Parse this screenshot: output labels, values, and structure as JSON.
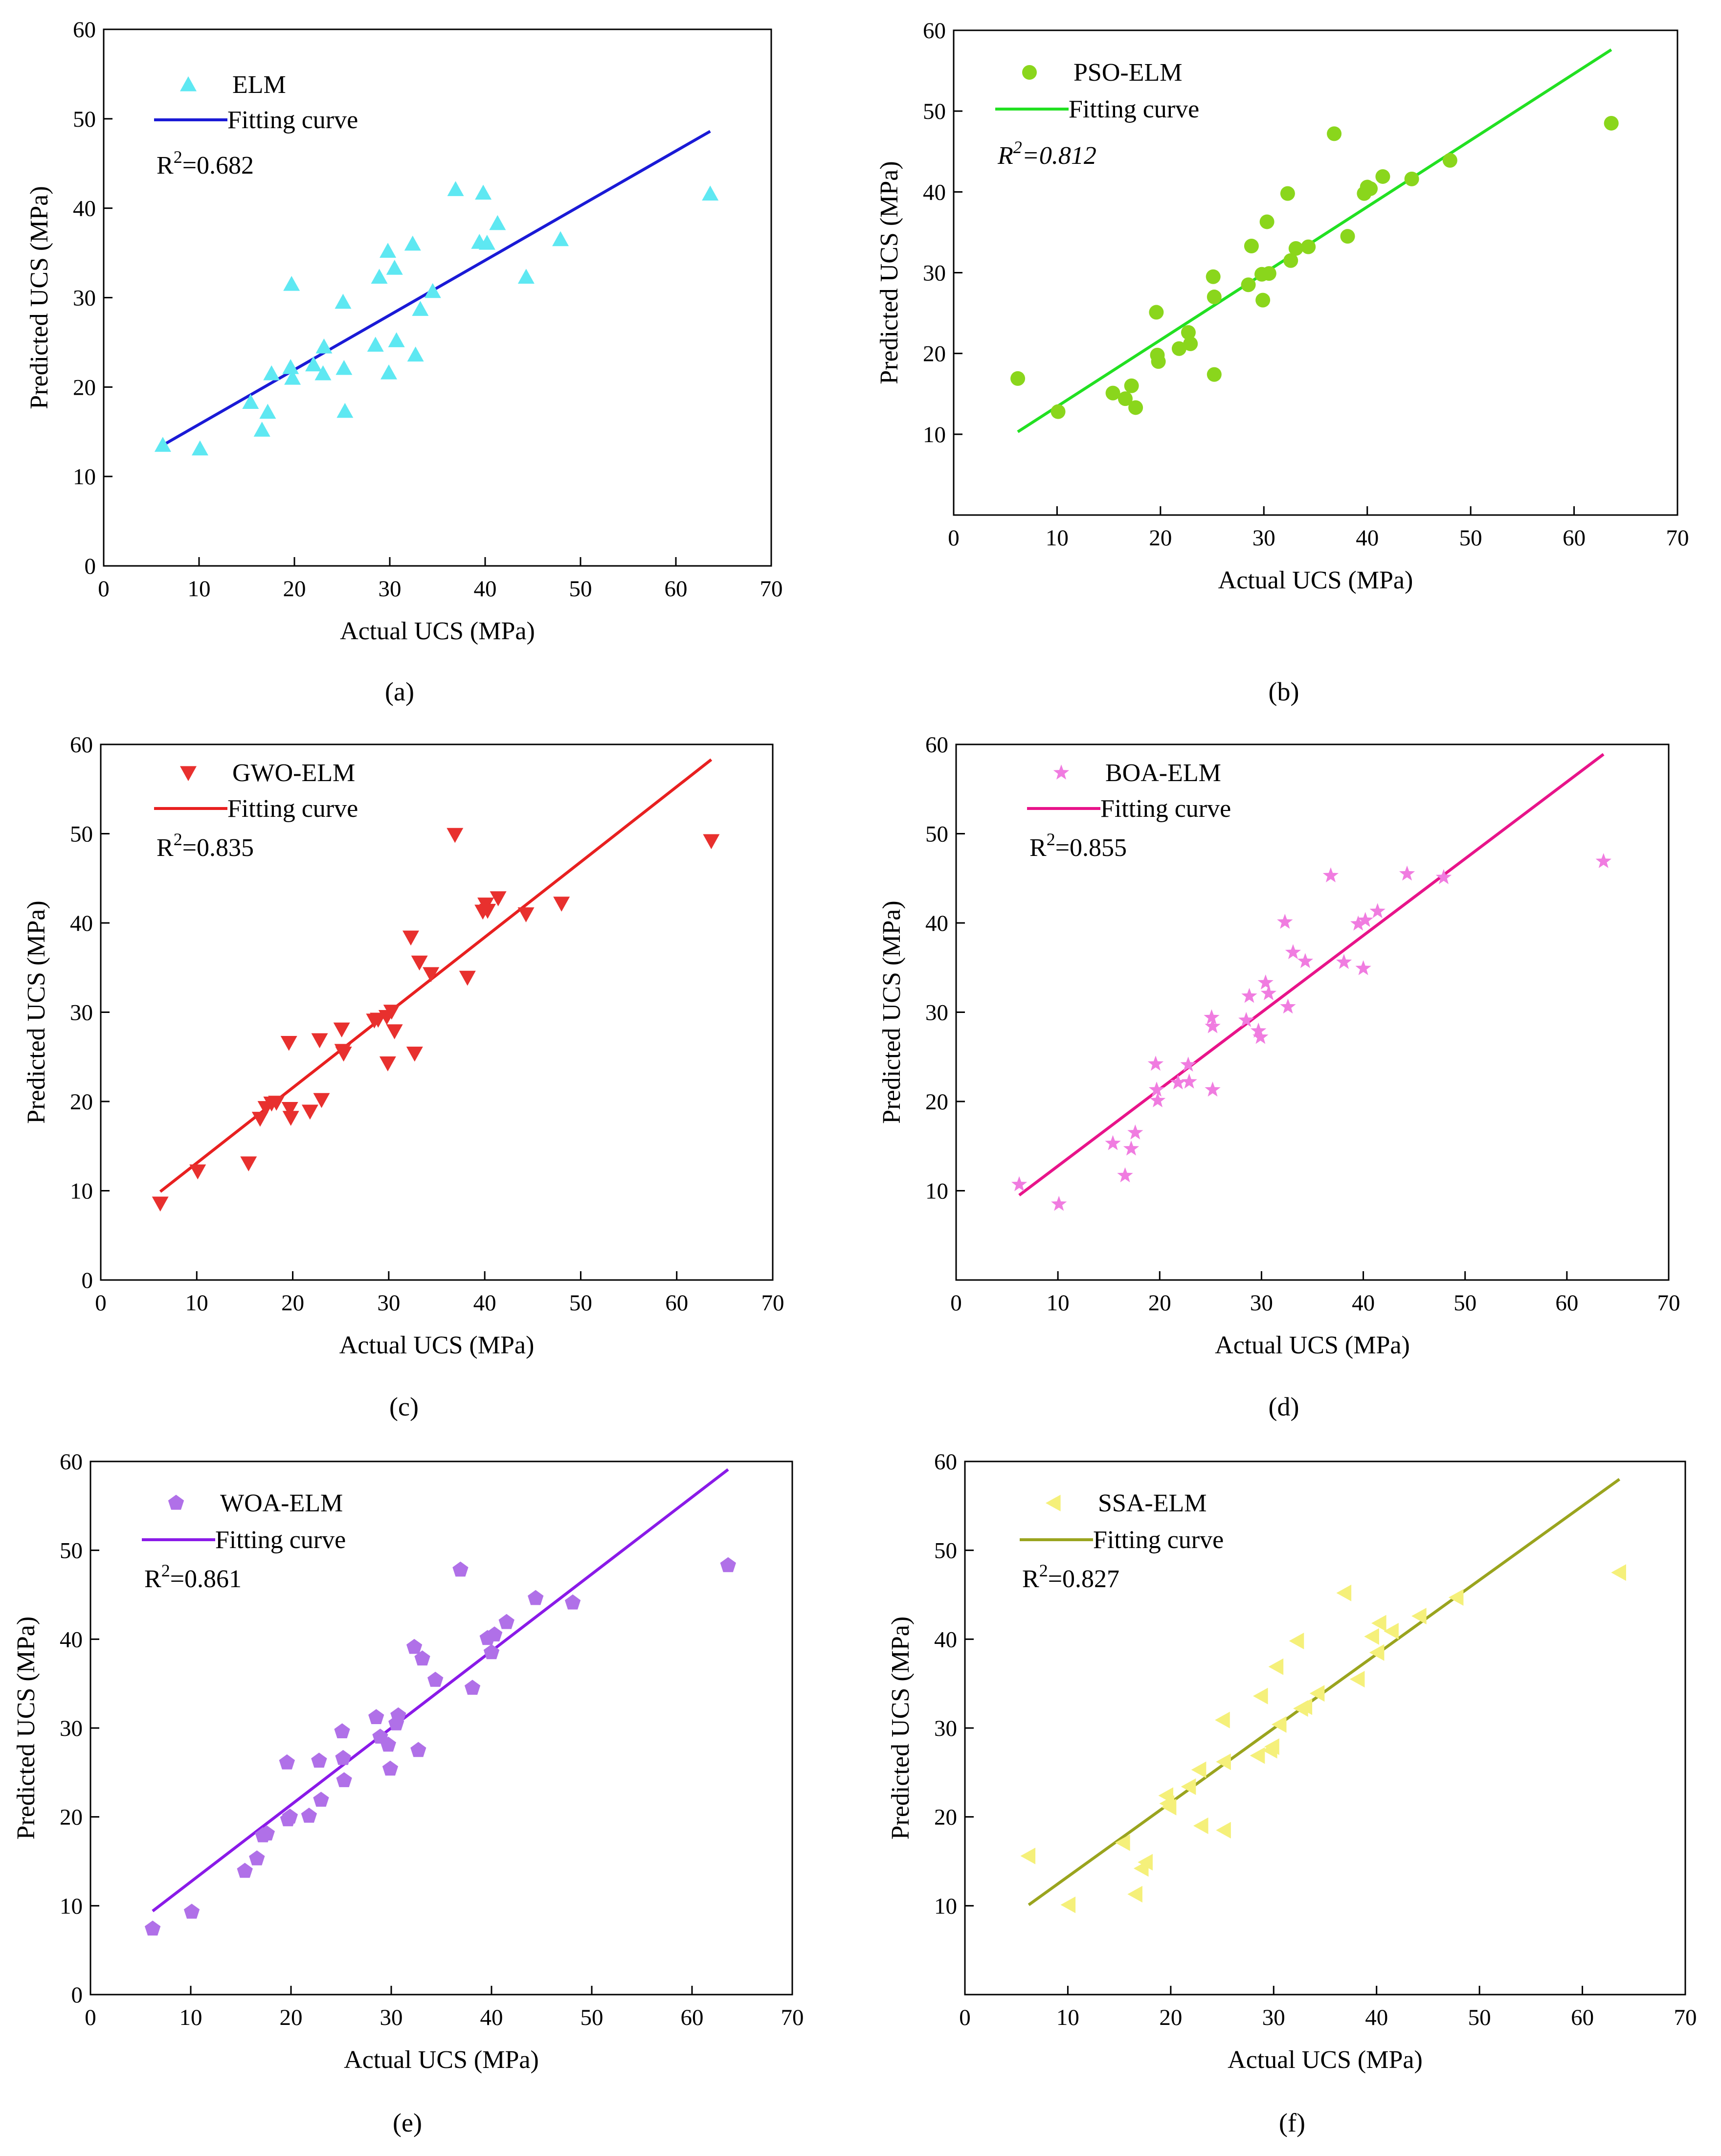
{
  "chart_data": [
    {
      "type": "scatter",
      "panel_label": "(a)",
      "model": "ELM",
      "fit_label": "Fitting curve",
      "r2_prefix": "R",
      "r2_sup": "2",
      "r2_value": "=0.682",
      "xlabel": "Actual UCS (MPa)",
      "ylabel": "Predicted UCS (MPa)",
      "xlim": [
        0,
        70
      ],
      "ylim": [
        0,
        60
      ],
      "xticks": [
        "0",
        "10",
        "20",
        "30",
        "40",
        "50",
        "60",
        "70"
      ],
      "yticks": [
        "0",
        "10",
        "20",
        "30",
        "40",
        "50",
        "60"
      ],
      "marker": "triangle-up",
      "marker_color": "#5ee8f2",
      "line_color": "#1a1ad6",
      "fit_line": [
        [
          6.2,
          13.5
        ],
        [
          63.6,
          48.6
        ]
      ],
      "points": [
        [
          6.2,
          13.5
        ],
        [
          10.1,
          13.1
        ],
        [
          15.4,
          18.3
        ],
        [
          16.6,
          15.2
        ],
        [
          17.2,
          17.2
        ],
        [
          17.6,
          21.5
        ],
        [
          19.6,
          22.2
        ],
        [
          19.7,
          31.5
        ],
        [
          19.8,
          21.0
        ],
        [
          22.0,
          22.5
        ],
        [
          23.0,
          21.5
        ],
        [
          23.1,
          24.5
        ],
        [
          25.1,
          29.5
        ],
        [
          25.2,
          22.1
        ],
        [
          25.3,
          17.3
        ],
        [
          28.5,
          24.7
        ],
        [
          28.9,
          32.3
        ],
        [
          29.8,
          35.2
        ],
        [
          29.9,
          21.6
        ],
        [
          30.5,
          33.3
        ],
        [
          30.7,
          25.2
        ],
        [
          32.4,
          36.0
        ],
        [
          32.7,
          23.6
        ],
        [
          33.2,
          28.7
        ],
        [
          34.5,
          30.7
        ],
        [
          36.9,
          42.1
        ],
        [
          39.4,
          36.2
        ],
        [
          39.8,
          41.7
        ],
        [
          40.2,
          36.1
        ],
        [
          41.3,
          38.3
        ],
        [
          44.3,
          32.3
        ],
        [
          47.9,
          36.5
        ],
        [
          63.6,
          41.6
        ]
      ]
    },
    {
      "type": "scatter",
      "panel_label": "(b)",
      "model": "PSO-ELM",
      "fit_label": "Fitting curve",
      "r2_prefix": "R",
      "r2_sup": "2",
      "r2_value": "=0.812",
      "xlabel": "Actual UCS (MPa)",
      "ylabel": "Predicted UCS (MPa)",
      "xlim": [
        0,
        70
      ],
      "ylim": [
        0,
        60
      ],
      "xticks": [
        "0",
        "10",
        "20",
        "30",
        "40",
        "50",
        "60",
        "70"
      ],
      "yticks": [
        "10",
        "20",
        "30",
        "40",
        "50",
        "60"
      ],
      "marker": "circle",
      "marker_color": "#8ad61c",
      "line_color": "#22e022",
      "fit_line": [
        [
          6.2,
          10.3
        ],
        [
          63.6,
          57.6
        ]
      ],
      "points": [
        [
          6.2,
          16.9
        ],
        [
          10.1,
          12.8
        ],
        [
          15.4,
          15.1
        ],
        [
          16.6,
          14.4
        ],
        [
          17.2,
          16.0
        ],
        [
          17.6,
          13.3
        ],
        [
          19.6,
          25.1
        ],
        [
          19.7,
          19.8
        ],
        [
          19.8,
          19.0
        ],
        [
          21.8,
          20.6
        ],
        [
          22.7,
          22.6
        ],
        [
          22.9,
          21.2
        ],
        [
          25.1,
          29.5
        ],
        [
          25.2,
          27.0
        ],
        [
          25.2,
          17.4
        ],
        [
          28.5,
          28.5
        ],
        [
          28.8,
          33.3
        ],
        [
          29.8,
          29.8
        ],
        [
          29.9,
          26.6
        ],
        [
          30.3,
          36.3
        ],
        [
          30.5,
          29.9
        ],
        [
          32.3,
          39.8
        ],
        [
          32.6,
          31.5
        ],
        [
          33.1,
          33.0
        ],
        [
          34.3,
          33.2
        ],
        [
          36.8,
          47.2
        ],
        [
          38.1,
          34.5
        ],
        [
          39.7,
          39.8
        ],
        [
          40.0,
          40.6
        ],
        [
          40.3,
          40.4
        ],
        [
          41.5,
          41.9
        ],
        [
          44.3,
          41.6
        ],
        [
          48.0,
          43.9
        ],
        [
          63.6,
          48.5
        ]
      ]
    },
    {
      "type": "scatter",
      "panel_label": "(c)",
      "model": "GWO-ELM",
      "fit_label": "Fitting curve",
      "r2_prefix": "R",
      "r2_sup": "2",
      "r2_value": "=0.835",
      "xlabel": "Actual UCS (MPa)",
      "ylabel": "Predicted UCS (MPa)",
      "xlim": [
        0,
        70
      ],
      "ylim": [
        0,
        60
      ],
      "xticks": [
        "0",
        "10",
        "20",
        "30",
        "40",
        "50",
        "60",
        "70"
      ],
      "yticks": [
        "0",
        "10",
        "20",
        "30",
        "40",
        "50",
        "60"
      ],
      "marker": "triangle-down",
      "marker_color": "#e8302e",
      "line_color": "#e82020",
      "fit_line": [
        [
          6.2,
          9.9
        ],
        [
          63.6,
          58.3
        ]
      ],
      "points": [
        [
          6.2,
          8.6
        ],
        [
          10.1,
          12.2
        ],
        [
          15.4,
          13.1
        ],
        [
          16.6,
          18.1
        ],
        [
          17.2,
          19.3
        ],
        [
          17.8,
          19.8
        ],
        [
          18.3,
          19.9
        ],
        [
          19.6,
          26.6
        ],
        [
          19.7,
          19.2
        ],
        [
          19.8,
          18.2
        ],
        [
          21.8,
          18.9
        ],
        [
          22.8,
          26.9
        ],
        [
          23.0,
          20.2
        ],
        [
          25.1,
          28.1
        ],
        [
          25.2,
          25.7
        ],
        [
          25.3,
          25.4
        ],
        [
          28.5,
          29.1
        ],
        [
          28.9,
          29.2
        ],
        [
          29.8,
          29.5
        ],
        [
          29.9,
          24.3
        ],
        [
          30.3,
          30.1
        ],
        [
          30.6,
          27.9
        ],
        [
          32.3,
          38.4
        ],
        [
          32.7,
          25.4
        ],
        [
          33.2,
          35.6
        ],
        [
          34.4,
          34.3
        ],
        [
          36.9,
          49.9
        ],
        [
          38.2,
          33.9
        ],
        [
          39.8,
          41.3
        ],
        [
          40.1,
          42.1
        ],
        [
          40.3,
          41.4
        ],
        [
          41.4,
          42.8
        ],
        [
          44.3,
          41.0
        ],
        [
          48.0,
          42.2
        ],
        [
          63.6,
          49.2
        ]
      ]
    },
    {
      "type": "scatter",
      "panel_label": "(d)",
      "model": "BOA-ELM",
      "fit_label": "Fitting curve",
      "r2_prefix": "R",
      "r2_sup": "2",
      "r2_value": "=0.855",
      "xlabel": "Actual UCS (MPa)",
      "ylabel": "Predicted UCS (MPa)",
      "xlim": [
        0,
        70
      ],
      "ylim": [
        0,
        60
      ],
      "xticks": [
        "0",
        "10",
        "20",
        "30",
        "40",
        "50",
        "60",
        "70"
      ],
      "yticks": [
        "10",
        "20",
        "30",
        "40",
        "50",
        "60"
      ],
      "marker": "star",
      "marker_color": "#f07ce0",
      "line_color": "#e8148a",
      "fit_line": [
        [
          6.2,
          9.5
        ],
        [
          63.6,
          58.9
        ]
      ],
      "points": [
        [
          6.2,
          10.7
        ],
        [
          10.1,
          8.5
        ],
        [
          15.4,
          15.3
        ],
        [
          16.6,
          11.7
        ],
        [
          17.2,
          14.7
        ],
        [
          17.6,
          16.5
        ],
        [
          19.6,
          24.2
        ],
        [
          19.7,
          21.3
        ],
        [
          19.8,
          20.1
        ],
        [
          21.8,
          22.1
        ],
        [
          22.8,
          24.1
        ],
        [
          22.9,
          22.2
        ],
        [
          25.1,
          29.4
        ],
        [
          25.2,
          28.4
        ],
        [
          25.2,
          21.3
        ],
        [
          28.5,
          29.1
        ],
        [
          28.8,
          31.8
        ],
        [
          29.7,
          27.9
        ],
        [
          29.9,
          27.2
        ],
        [
          30.4,
          33.3
        ],
        [
          30.7,
          32.1
        ],
        [
          32.3,
          40.1
        ],
        [
          32.6,
          30.6
        ],
        [
          33.1,
          36.7
        ],
        [
          34.3,
          35.7
        ],
        [
          36.8,
          45.3
        ],
        [
          38.1,
          35.6
        ],
        [
          39.5,
          39.9
        ],
        [
          40.0,
          34.9
        ],
        [
          40.2,
          40.3
        ],
        [
          41.4,
          41.3
        ],
        [
          44.3,
          45.5
        ],
        [
          47.9,
          45.1
        ],
        [
          63.6,
          46.9
        ]
      ]
    },
    {
      "type": "scatter",
      "panel_label": "(e)",
      "model": "WOA-ELM",
      "fit_label": "Fitting curve",
      "r2_prefix": "R",
      "r2_sup": "2",
      "r2_value": "=0.861",
      "xlabel": "Actual UCS (MPa)",
      "ylabel": "Predicted UCS (MPa)",
      "xlim": [
        0,
        70
      ],
      "ylim": [
        0,
        60
      ],
      "xticks": [
        "0",
        "10",
        "20",
        "30",
        "40",
        "50",
        "60",
        "70"
      ],
      "yticks": [
        "0",
        "10",
        "20",
        "30",
        "40",
        "50",
        "60"
      ],
      "marker": "pentagon",
      "marker_color": "#b070e8",
      "line_color": "#8a1ae8",
      "fit_line": [
        [
          6.2,
          9.4
        ],
        [
          63.6,
          59.1
        ]
      ],
      "points": [
        [
          6.2,
          7.4
        ],
        [
          10.1,
          9.3
        ],
        [
          15.4,
          13.9
        ],
        [
          16.6,
          15.3
        ],
        [
          17.2,
          17.9
        ],
        [
          17.6,
          18.1
        ],
        [
          19.6,
          26.1
        ],
        [
          19.7,
          19.7
        ],
        [
          19.9,
          20.0
        ],
        [
          21.8,
          20.1
        ],
        [
          22.8,
          26.3
        ],
        [
          23.0,
          21.9
        ],
        [
          25.1,
          29.6
        ],
        [
          25.2,
          26.6
        ],
        [
          25.3,
          24.1
        ],
        [
          28.5,
          31.2
        ],
        [
          28.9,
          29.0
        ],
        [
          29.7,
          28.1
        ],
        [
          29.9,
          25.4
        ],
        [
          30.5,
          30.5
        ],
        [
          30.7,
          31.4
        ],
        [
          32.3,
          39.1
        ],
        [
          32.7,
          27.5
        ],
        [
          33.1,
          37.8
        ],
        [
          34.4,
          35.4
        ],
        [
          36.9,
          47.8
        ],
        [
          38.1,
          34.5
        ],
        [
          39.6,
          40.1
        ],
        [
          40.0,
          38.5
        ],
        [
          40.3,
          40.5
        ],
        [
          41.5,
          41.9
        ],
        [
          44.4,
          44.6
        ],
        [
          48.1,
          44.1
        ],
        [
          63.6,
          48.3
        ]
      ]
    },
    {
      "type": "scatter",
      "panel_label": "(f)",
      "model": "SSA-ELM",
      "fit_label": "Fitting curve",
      "r2_prefix": "R",
      "r2_sup": "2",
      "r2_value": "=0.827",
      "xlabel": "Actual UCS (MPa)",
      "ylabel": "Predicted UCS (MPa)",
      "xlim": [
        0,
        70
      ],
      "ylim": [
        0,
        60
      ],
      "xticks": [
        "0",
        "10",
        "20",
        "30",
        "40",
        "50",
        "60",
        "70"
      ],
      "yticks": [
        "10",
        "20",
        "30",
        "40",
        "50",
        "60"
      ],
      "marker": "triangle-left",
      "marker_color": "#f5f07a",
      "line_color": "#9aa41e",
      "fit_line": [
        [
          6.2,
          10.1
        ],
        [
          63.6,
          58.0
        ]
      ],
      "points": [
        [
          6.2,
          15.6
        ],
        [
          10.1,
          10.1
        ],
        [
          15.4,
          17.1
        ],
        [
          16.6,
          11.3
        ],
        [
          17.2,
          14.2
        ],
        [
          17.6,
          14.9
        ],
        [
          19.6,
          22.4
        ],
        [
          19.7,
          21.5
        ],
        [
          19.9,
          21.1
        ],
        [
          21.8,
          23.4
        ],
        [
          22.8,
          25.3
        ],
        [
          23.0,
          19.0
        ],
        [
          25.1,
          30.9
        ],
        [
          25.2,
          26.2
        ],
        [
          25.2,
          18.5
        ],
        [
          28.5,
          26.9
        ],
        [
          28.8,
          33.6
        ],
        [
          29.7,
          27.5
        ],
        [
          29.9,
          27.9
        ],
        [
          30.3,
          36.9
        ],
        [
          30.6,
          30.4
        ],
        [
          32.3,
          39.8
        ],
        [
          32.7,
          32.2
        ],
        [
          33.1,
          32.4
        ],
        [
          34.3,
          33.9
        ],
        [
          36.9,
          45.2
        ],
        [
          38.2,
          35.5
        ],
        [
          39.6,
          40.3
        ],
        [
          40.1,
          38.5
        ],
        [
          40.3,
          41.8
        ],
        [
          41.5,
          40.9
        ],
        [
          44.2,
          42.6
        ],
        [
          47.8,
          44.7
        ],
        [
          63.6,
          47.5
        ]
      ]
    }
  ]
}
